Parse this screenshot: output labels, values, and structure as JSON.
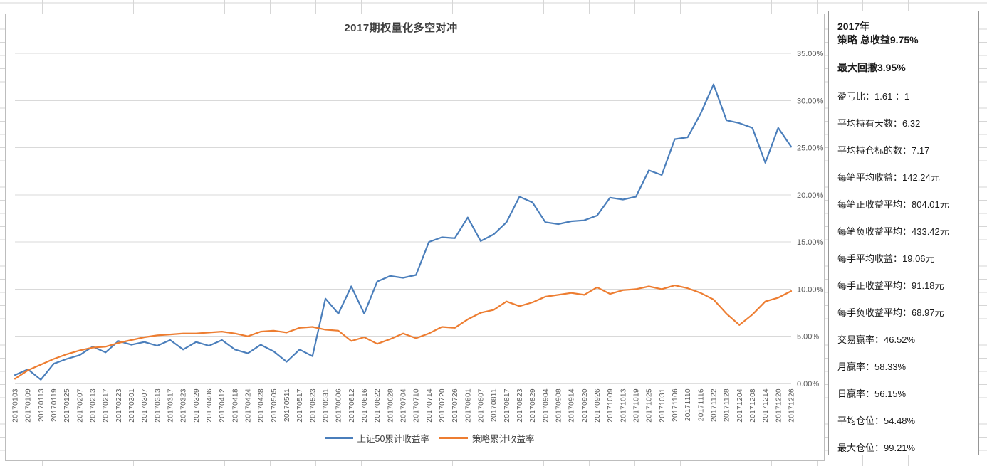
{
  "chart": {
    "title": "2017期权量化多空对冲"
  },
  "chart_data": {
    "type": "line",
    "title": "2017期权量化多空对冲",
    "categories": [
      "20170103",
      "20170109",
      "20170113",
      "20170119",
      "20170125",
      "20170207",
      "20170213",
      "20170217",
      "20170223",
      "20170301",
      "20170307",
      "20170313",
      "20170317",
      "20170323",
      "20170329",
      "20170406",
      "20170412",
      "20170418",
      "20170424",
      "20170428",
      "20170505",
      "20170511",
      "20170517",
      "20170523",
      "20170531",
      "20170606",
      "20170612",
      "20170616",
      "20170622",
      "20170628",
      "20170704",
      "20170710",
      "20170714",
      "20170720",
      "20170726",
      "20170801",
      "20170807",
      "20170811",
      "20170817",
      "20170823",
      "20170829",
      "20170904",
      "20170908",
      "20170914",
      "20170920",
      "20170926",
      "20171009",
      "20171013",
      "20171019",
      "20171025",
      "20171031",
      "20171106",
      "20171110",
      "20171116",
      "20171122",
      "20171128",
      "20171204",
      "20171208",
      "20171214",
      "20171220",
      "20171226"
    ],
    "series": [
      {
        "name": "上证50累计收益率",
        "color": "#4a7ebb",
        "values": [
          0.9,
          1.5,
          0.4,
          2.1,
          2.6,
          3.0,
          3.9,
          3.3,
          4.5,
          4.1,
          4.4,
          4.0,
          4.6,
          3.6,
          4.4,
          4.0,
          4.6,
          3.6,
          3.2,
          4.1,
          3.4,
          2.3,
          3.6,
          2.9,
          9.0,
          7.4,
          10.3,
          7.4,
          10.8,
          11.4,
          11.2,
          11.5,
          15.0,
          15.5,
          15.4,
          17.6,
          15.1,
          15.8,
          17.1,
          19.8,
          19.2,
          17.1,
          16.9,
          17.2,
          17.3,
          17.8,
          19.7,
          19.5,
          19.8,
          22.6,
          22.1,
          25.9,
          26.1,
          28.6,
          31.7,
          27.9,
          27.6,
          27.1,
          23.4,
          27.1,
          25.1
        ]
      },
      {
        "name": "策略累计收益率",
        "color": "#ed7d31",
        "values": [
          0.5,
          1.4,
          2.0,
          2.6,
          3.1,
          3.5,
          3.8,
          3.9,
          4.3,
          4.6,
          4.9,
          5.1,
          5.2,
          5.3,
          5.3,
          5.4,
          5.5,
          5.3,
          5.0,
          5.5,
          5.6,
          5.4,
          5.9,
          6.0,
          5.7,
          5.6,
          4.5,
          4.9,
          4.2,
          4.7,
          5.3,
          4.8,
          5.3,
          6.0,
          5.9,
          6.8,
          7.5,
          7.8,
          8.7,
          8.2,
          8.6,
          9.2,
          9.4,
          9.6,
          9.4,
          10.2,
          9.5,
          9.9,
          10.0,
          10.3,
          10.0,
          10.4,
          10.1,
          9.6,
          8.9,
          7.4,
          6.2,
          7.3,
          8.7,
          9.1,
          9.8
        ]
      }
    ],
    "ylim": [
      0,
      35
    ],
    "y_ticks": [
      "0.00%",
      "5.00%",
      "10.00%",
      "15.00%",
      "20.00%",
      "25.00%",
      "30.00%",
      "35.00%"
    ],
    "grid": "horizontal",
    "legend_position": "bottom",
    "x_label_rotation": -90
  },
  "stats_panel": {
    "year": "2017年",
    "total_return": "策略 总收益9.75%",
    "max_drawdown": "最大回撤3.95%",
    "items": [
      "盈亏比：1.61 ：1",
      "平均持有天数：6.32",
      "平均持仓标的数：7.17",
      "每笔平均收益：142.24元",
      "每笔正收益平均：804.01元",
      "每笔负收益平均：433.42元",
      "每手平均收益：19.06元",
      "每手正收益平均：91.18元",
      "每手负收益平均：68.97元",
      "交易赢率：46.52%",
      "月赢率：58.33%",
      "日赢率：56.15%",
      "平均仓位：54.48%",
      "最大仓位：99.21%"
    ]
  }
}
